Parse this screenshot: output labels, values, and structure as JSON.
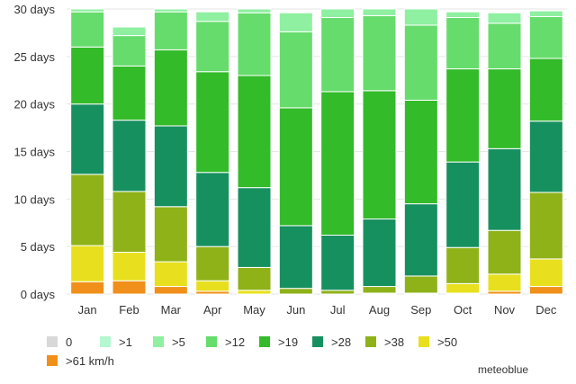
{
  "chart_data": {
    "type": "bar",
    "stacked": true,
    "categories": [
      "Jan",
      "Feb",
      "Mar",
      "Apr",
      "May",
      "Jun",
      "Jul",
      "Aug",
      "Sep",
      "Oct",
      "Nov",
      "Dec"
    ],
    "series": [
      {
        "name": ">61 km/h",
        "color": "#f0901a",
        "values": [
          1.3,
          1.4,
          0.8,
          0.3,
          0.0,
          0.0,
          0.0,
          0.0,
          0.0,
          0.1,
          0.3,
          0.8
        ]
      },
      {
        "name": ">50",
        "color": "#e8e01e",
        "values": [
          3.8,
          3.0,
          2.6,
          1.1,
          0.4,
          0.0,
          0.0,
          0.1,
          0.1,
          1.0,
          1.8,
          2.9
        ]
      },
      {
        "name": ">38",
        "color": "#8fb219",
        "values": [
          7.5,
          6.4,
          5.8,
          3.6,
          2.4,
          0.6,
          0.4,
          0.7,
          1.8,
          3.8,
          4.6,
          7.0
        ]
      },
      {
        "name": ">28",
        "color": "#179060",
        "values": [
          7.4,
          7.5,
          8.5,
          7.8,
          8.4,
          6.6,
          5.8,
          7.1,
          7.6,
          9.0,
          8.6,
          7.5
        ]
      },
      {
        "name": ">19",
        "color": "#33bb2a",
        "values": [
          6.0,
          5.7,
          8.0,
          10.6,
          11.8,
          12.4,
          15.1,
          13.5,
          10.9,
          9.8,
          8.4,
          6.6
        ]
      },
      {
        "name": ">12",
        "color": "#66dc6c",
        "values": [
          3.7,
          3.2,
          4.0,
          5.3,
          6.6,
          8.0,
          7.8,
          7.9,
          7.9,
          5.4,
          4.8,
          4.4
        ]
      },
      {
        "name": ">5",
        "color": "#8ef0a0",
        "values": [
          0.3,
          0.9,
          0.3,
          1.0,
          0.4,
          2.0,
          0.9,
          0.7,
          1.7,
          0.6,
          1.1,
          0.6
        ]
      },
      {
        "name": ">1",
        "color": "#b4f7d0",
        "values": [
          0.0,
          0.0,
          0.0,
          0.0,
          0.0,
          0.0,
          0.0,
          0.0,
          0.0,
          0.0,
          0.0,
          0.0
        ]
      },
      {
        "name": "0",
        "color": "#d8d8d8",
        "values": [
          0.0,
          0.0,
          0.0,
          0.0,
          0.0,
          0.0,
          0.0,
          0.0,
          0.0,
          0.0,
          0.0,
          0.0
        ]
      }
    ],
    "yticks": [
      "0 days",
      "5 days",
      "10 days",
      "15 days",
      "20 days",
      "25 days",
      "30 days"
    ],
    "ylim": [
      0,
      30
    ],
    "grid": true,
    "legend_position": "bottom"
  },
  "legend": [
    {
      "label": "0",
      "color": "#d8d8d8"
    },
    {
      "label": ">1",
      "color": "#b4f7d0"
    },
    {
      "label": ">5",
      "color": "#8ef0a0"
    },
    {
      "label": ">12",
      "color": "#66dc6c"
    },
    {
      "label": ">19",
      "color": "#33bb2a"
    },
    {
      "label": ">28",
      "color": "#179060"
    },
    {
      "label": ">38",
      "color": "#8fb219"
    },
    {
      "label": ">50",
      "color": "#e8e01e"
    },
    {
      "label": ">61 km/h",
      "color": "#f0901a"
    }
  ],
  "credit": "meteoblue"
}
